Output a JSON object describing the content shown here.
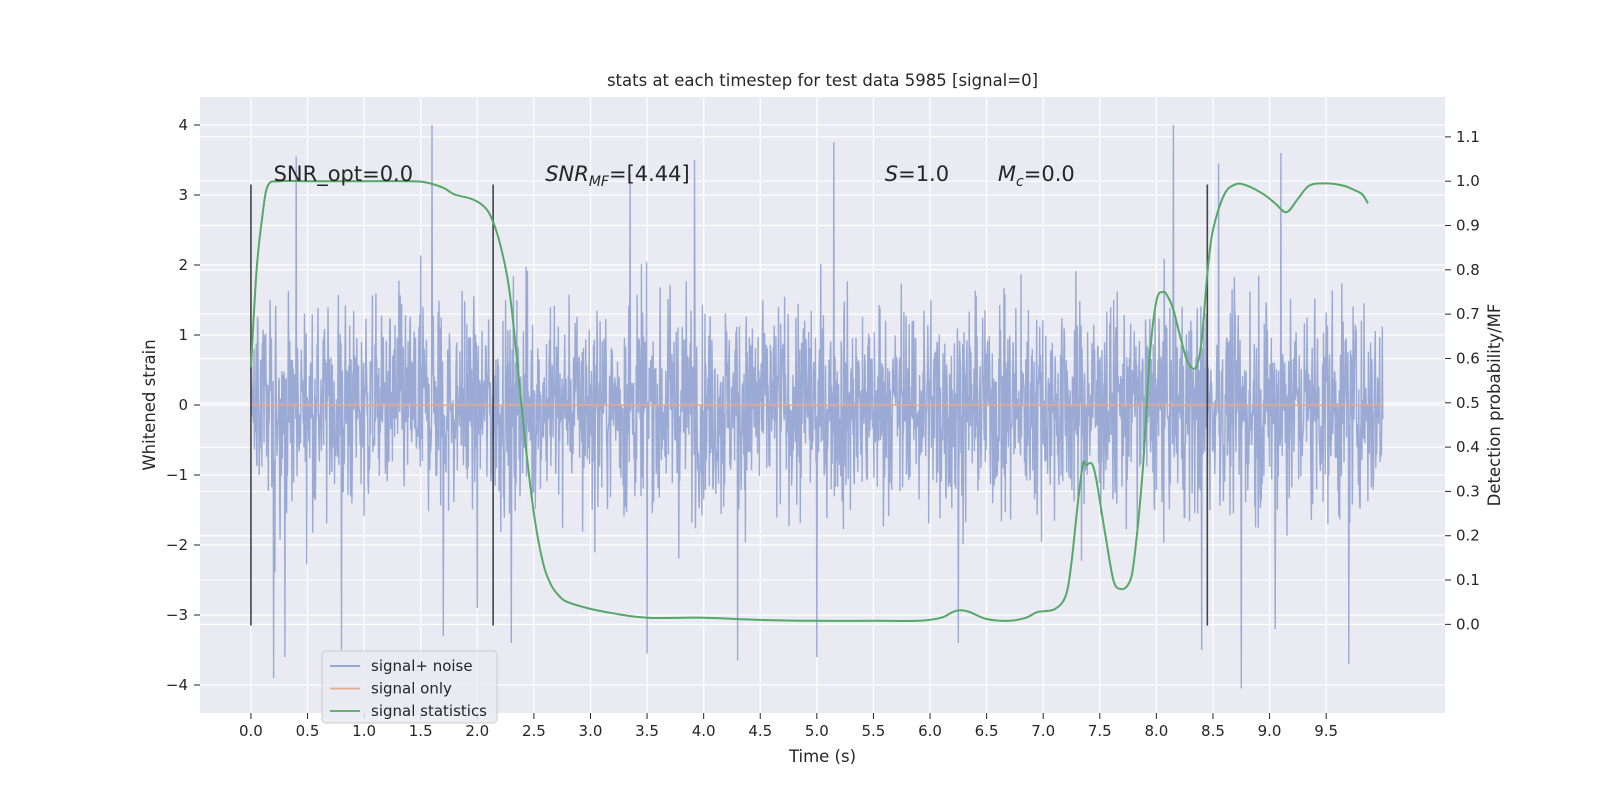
{
  "chart_data": {
    "type": "line",
    "title": "stats at each timestep for test data 5985 [signal=0]",
    "xlabel": "Time (s)",
    "ylabel": "Whitened strain",
    "y2label": "Detection probability/MF",
    "xlim": [
      -0.45,
      10.55
    ],
    "ylim": [
      -4.4,
      4.4
    ],
    "y2lim": [
      -0.2,
      1.19
    ],
    "x_ticks": [
      "0.0",
      "0.5",
      "1.0",
      "1.5",
      "2.0",
      "2.5",
      "3.0",
      "3.5",
      "4.0",
      "4.5",
      "5.0",
      "5.5",
      "6.0",
      "6.5",
      "7.0",
      "7.5",
      "8.0",
      "8.5",
      "9.0",
      "9.5"
    ],
    "y_ticks": [
      "4",
      "3",
      "2",
      "1",
      "0",
      "−1",
      "−2",
      "−3",
      "−4"
    ],
    "y2_ticks": [
      "1.1",
      "1.0",
      "0.9",
      "0.8",
      "0.7",
      "0.6",
      "0.5",
      "0.4",
      "0.3",
      "0.2",
      "0.1",
      "0.0"
    ],
    "grid": true,
    "legend_position": "lower-left",
    "colors": {
      "background": "#eaeaf2",
      "grid": "#ffffff",
      "noise": "#8c9fcf",
      "signal": "#e8a98d",
      "stats": "#55a868",
      "vline": "#444444"
    },
    "annotations": [
      {
        "id": "snr-opt",
        "text": "SNR_opt=0.0",
        "x": 0.2,
        "y": 3.2
      },
      {
        "id": "snr-mf",
        "text": "SNR_MF=[4.44]",
        "x": 2.6,
        "y": 3.2
      },
      {
        "id": "s-value",
        "text": "S=1.0",
        "x": 5.6,
        "y": 3.2
      },
      {
        "id": "mc-value",
        "text": "M_c=0.0",
        "x": 6.6,
        "y": 3.2
      }
    ],
    "vertical_lines": [
      0.0,
      2.14,
      8.45
    ],
    "vertical_line_ylim": [
      -3.15,
      3.15
    ],
    "series": [
      {
        "name": "signal+ noise",
        "axis": "left",
        "x_range": [
          0.0,
          10.0
        ],
        "spikes": [
          [
            1.6,
            4.0
          ],
          [
            8.15,
            4.0
          ],
          [
            5.15,
            3.75
          ],
          [
            3.92,
            3.5
          ],
          [
            8.55,
            3.45
          ],
          [
            9.1,
            3.6
          ],
          [
            0.4,
            3.55
          ],
          [
            3.35,
            3.3
          ],
          [
            0.8,
            -3.5
          ],
          [
            0.2,
            -3.9
          ],
          [
            3.5,
            -3.55
          ],
          [
            2.3,
            -3.4
          ],
          [
            8.75,
            -4.05
          ],
          [
            9.7,
            -3.7
          ],
          [
            4.3,
            -3.65
          ],
          [
            5.0,
            -3.6
          ],
          [
            8.4,
            -3.5
          ],
          [
            1.7,
            -3.3
          ],
          [
            6.25,
            -3.4
          ],
          [
            0.3,
            -3.6
          ],
          [
            9.05,
            -3.2
          ],
          [
            2.0,
            -2.9
          ]
        ]
      },
      {
        "name": "signal only",
        "axis": "left",
        "x": [
          0.0,
          10.0
        ],
        "y": [
          0.0,
          0.0
        ]
      },
      {
        "name": "signal statistics",
        "axis": "right",
        "x": [
          0.0,
          0.05,
          0.1,
          0.15,
          0.25,
          0.5,
          1.0,
          1.4,
          1.55,
          1.7,
          1.8,
          1.95,
          2.05,
          2.12,
          2.2,
          2.28,
          2.35,
          2.42,
          2.5,
          2.58,
          2.65,
          2.72,
          2.8,
          3.0,
          3.2,
          3.5,
          4.0,
          4.5,
          5.0,
          5.5,
          5.9,
          6.1,
          6.2,
          6.27,
          6.35,
          6.5,
          6.7,
          6.85,
          6.95,
          7.1,
          7.2,
          7.25,
          7.3,
          7.35,
          7.38,
          7.45,
          7.55,
          7.62,
          7.68,
          7.75,
          7.8,
          7.88,
          7.94,
          8.0,
          8.06,
          8.1,
          8.15,
          8.22,
          8.28,
          8.35,
          8.4,
          8.45,
          8.5,
          8.6,
          8.7,
          8.8,
          8.95,
          9.05,
          9.15,
          9.25,
          9.35,
          9.5,
          9.65,
          9.75,
          9.82,
          9.87
        ],
        "y": [
          0.58,
          0.8,
          0.92,
          0.99,
          1.0,
          1.0,
          1.0,
          1.0,
          0.997,
          0.985,
          0.97,
          0.96,
          0.945,
          0.92,
          0.86,
          0.76,
          0.6,
          0.42,
          0.25,
          0.14,
          0.09,
          0.065,
          0.05,
          0.035,
          0.025,
          0.015,
          0.015,
          0.01,
          0.008,
          0.008,
          0.008,
          0.015,
          0.028,
          0.032,
          0.028,
          0.012,
          0.008,
          0.015,
          0.028,
          0.034,
          0.065,
          0.14,
          0.26,
          0.36,
          0.36,
          0.35,
          0.2,
          0.1,
          0.08,
          0.09,
          0.14,
          0.35,
          0.6,
          0.73,
          0.75,
          0.74,
          0.71,
          0.64,
          0.59,
          0.58,
          0.64,
          0.79,
          0.89,
          0.97,
          0.993,
          0.99,
          0.97,
          0.95,
          0.93,
          0.96,
          0.99,
          0.995,
          0.99,
          0.98,
          0.97,
          0.95
        ]
      }
    ]
  }
}
